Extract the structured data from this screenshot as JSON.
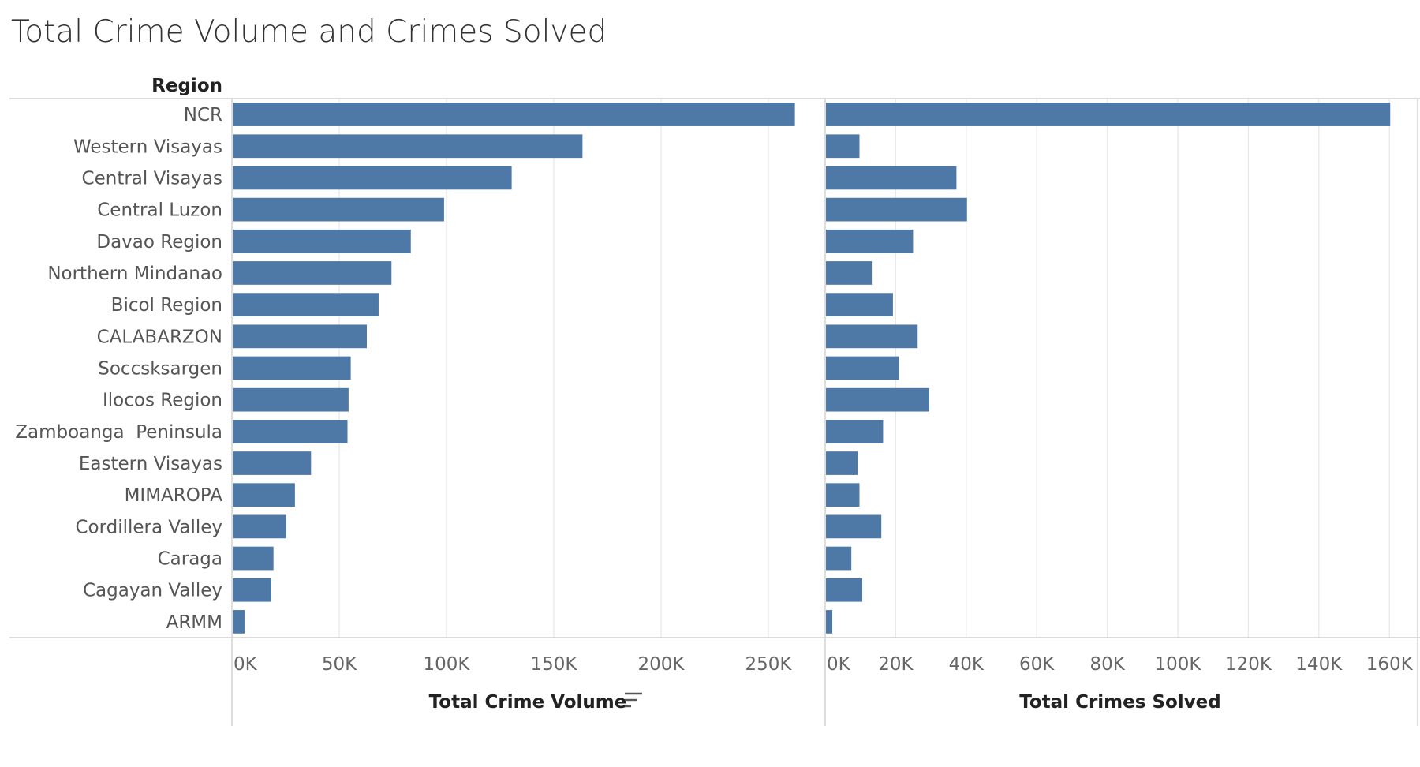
{
  "title": "Total Crime Volume and Crimes Solved",
  "region_header": "Region",
  "colors": {
    "bar": "#4e79a7"
  },
  "icons": {
    "sort": "sort-descending-icon"
  },
  "chart_data": [
    {
      "type": "bar",
      "orientation": "horizontal",
      "xlabel": "Total Crime Volume",
      "ylabel": "Region",
      "xlim": [
        0,
        275000
      ],
      "ticks": [
        0,
        50000,
        100000,
        150000,
        200000,
        250000
      ],
      "tick_labels": [
        "0K",
        "50K",
        "100K",
        "150K",
        "200K",
        "250K"
      ],
      "grid": true,
      "sorted": "descending",
      "categories": [
        "NCR",
        "Western Visayas",
        "Central Visayas",
        "Central Luzon",
        "Davao Region",
        "Northern Mindanao",
        "Bicol Region",
        "CALABARZON",
        "Soccsksargen",
        "Ilocos Region",
        "Zamboanga  Peninsula",
        "Eastern Visayas",
        "MIMAROPA",
        "Cordillera Valley",
        "Caraga",
        "Cagayan Valley",
        "ARMM"
      ],
      "values": [
        262000,
        163000,
        130000,
        98500,
        83000,
        74000,
        68000,
        62500,
        55000,
        54000,
        53500,
        36500,
        29000,
        25000,
        19000,
        18000,
        5500
      ]
    },
    {
      "type": "bar",
      "orientation": "horizontal",
      "xlabel": "Total Crimes Solved",
      "ylabel": "Region",
      "xlim": [
        0,
        168000
      ],
      "ticks": [
        0,
        20000,
        40000,
        60000,
        80000,
        100000,
        120000,
        140000,
        160000
      ],
      "tick_labels": [
        "0K",
        "20K",
        "40K",
        "60K",
        "80K",
        "100K",
        "120K",
        "140K",
        "160K"
      ],
      "grid": true,
      "categories": [
        "NCR",
        "Western Visayas",
        "Central Visayas",
        "Central Luzon",
        "Davao Region",
        "Northern Mindanao",
        "Bicol Region",
        "CALABARZON",
        "Soccsksargen",
        "Ilocos Region",
        "Zamboanga  Peninsula",
        "Eastern Visayas",
        "MIMAROPA",
        "Cordillera Valley",
        "Caraga",
        "Cagayan Valley",
        "ARMM"
      ],
      "values": [
        160000,
        9500,
        37000,
        40000,
        24700,
        13000,
        19000,
        26000,
        20700,
        29300,
        16200,
        9000,
        9500,
        15700,
        7200,
        10300,
        1800
      ]
    }
  ]
}
